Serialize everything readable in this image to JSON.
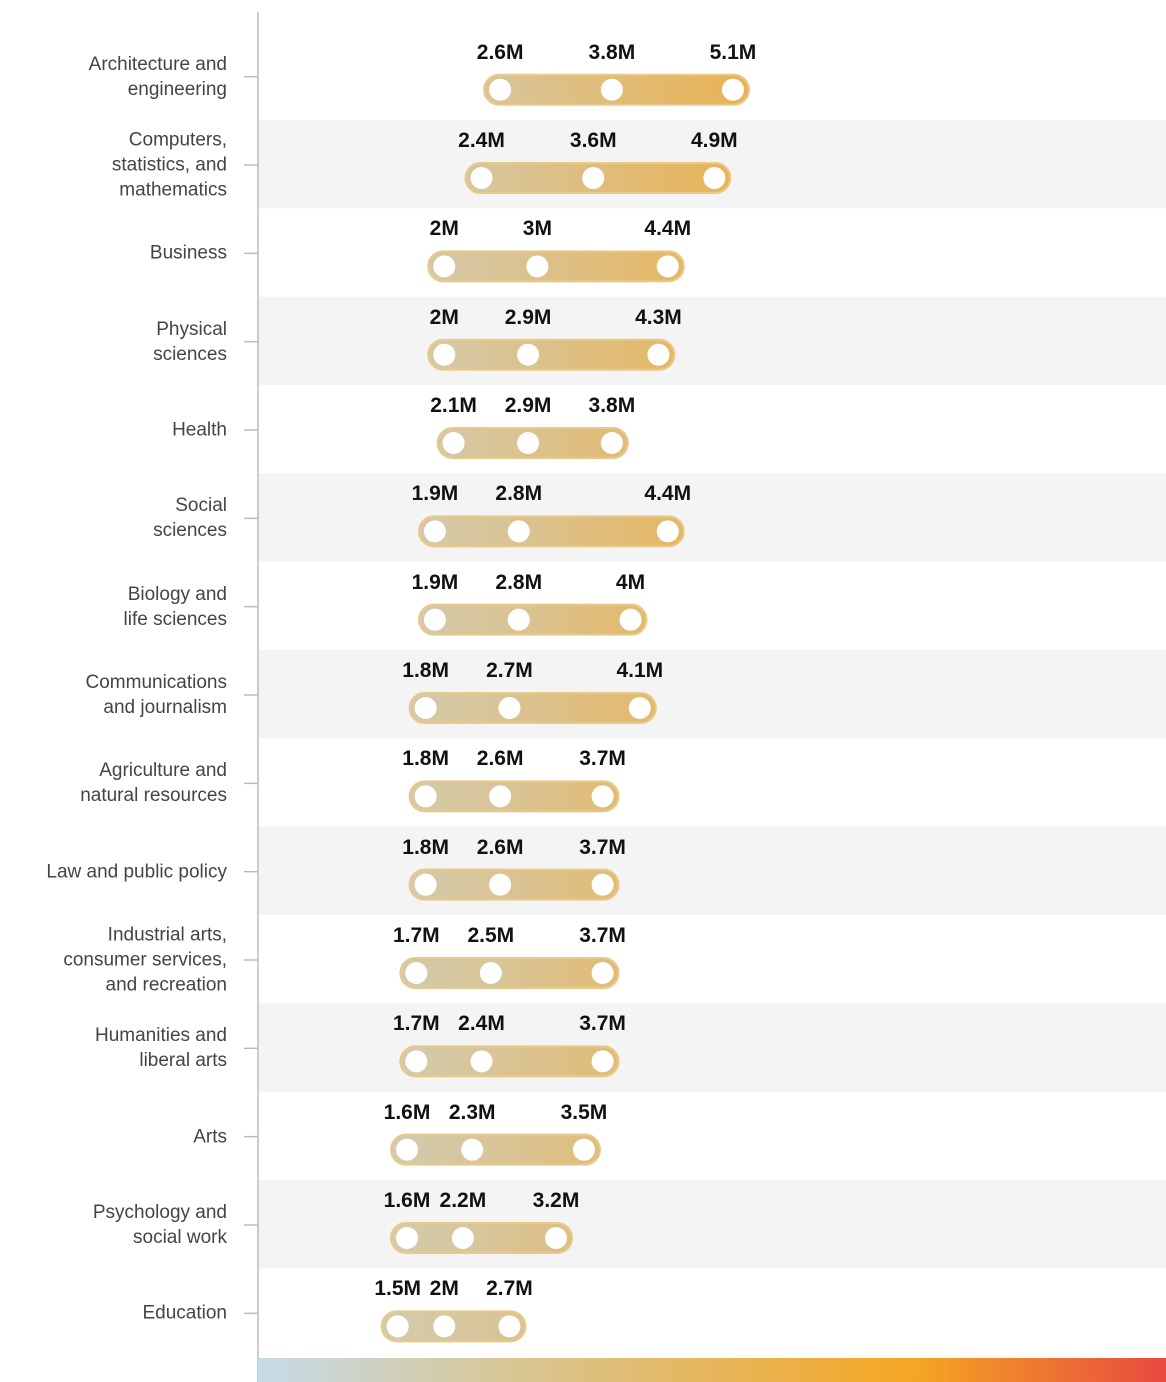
{
  "chart_data": {
    "type": "dot-range",
    "categories": [
      "Architecture and\nengineering",
      "Computers,\nstatistics, and\nmathematics",
      "Business",
      "Physical\nsciences",
      "Health",
      "Social\nsciences",
      "Biology and\nlife sciences",
      "Communications\nand journalism",
      "Agriculture and\nnatural resources",
      "Law and public policy",
      "Industrial arts,\nconsumer services,\nand recreation",
      "Humanities and\nliberal arts",
      "Arts",
      "Psychology and\nsocial work",
      "Education"
    ],
    "series": [
      {
        "color": "#ffffff",
        "values": [
          2.6,
          2.4,
          2,
          2,
          2.1,
          1.9,
          1.9,
          1.8,
          1.8,
          1.8,
          1.7,
          1.7,
          1.6,
          1.6,
          1.5
        ],
        "value_labels": [
          "2.6M",
          "2.4M",
          "2M",
          "2M",
          "2.1M",
          "1.9M",
          "1.9M",
          "1.8M",
          "1.8M",
          "1.8M",
          "1.7M",
          "1.7M",
          "1.6M",
          "1.6M",
          "1.5M"
        ]
      },
      {
        "color": "#ffffff",
        "values": [
          3.8,
          3.6,
          3,
          2.9,
          2.9,
          2.8,
          2.8,
          2.7,
          2.6,
          2.6,
          2.5,
          2.4,
          2.3,
          2.2,
          2
        ],
        "value_labels": [
          "3.8M",
          "3.6M",
          "3M",
          "2.9M",
          "2.9M",
          "2.8M",
          "2.8M",
          "2.7M",
          "2.6M",
          "2.6M",
          "2.5M",
          "2.4M",
          "2.3M",
          "2.2M",
          "2M"
        ]
      },
      {
        "color": "#ffffff",
        "values": [
          5.1,
          4.9,
          4.4,
          4.3,
          3.8,
          4.4,
          4,
          4.1,
          3.7,
          3.7,
          3.7,
          3.7,
          3.5,
          3.2,
          2.7
        ],
        "value_labels": [
          "5.1M",
          "4.9M",
          "4.4M",
          "4.3M",
          "3.8M",
          "4.4M",
          "4M",
          "4.1M",
          "3.7M",
          "3.7M",
          "3.7M",
          "3.7M",
          "3.5M",
          "3.2M",
          "2.7M"
        ]
      }
    ],
    "xlim": [
      0,
      9.75
    ]
  }
}
